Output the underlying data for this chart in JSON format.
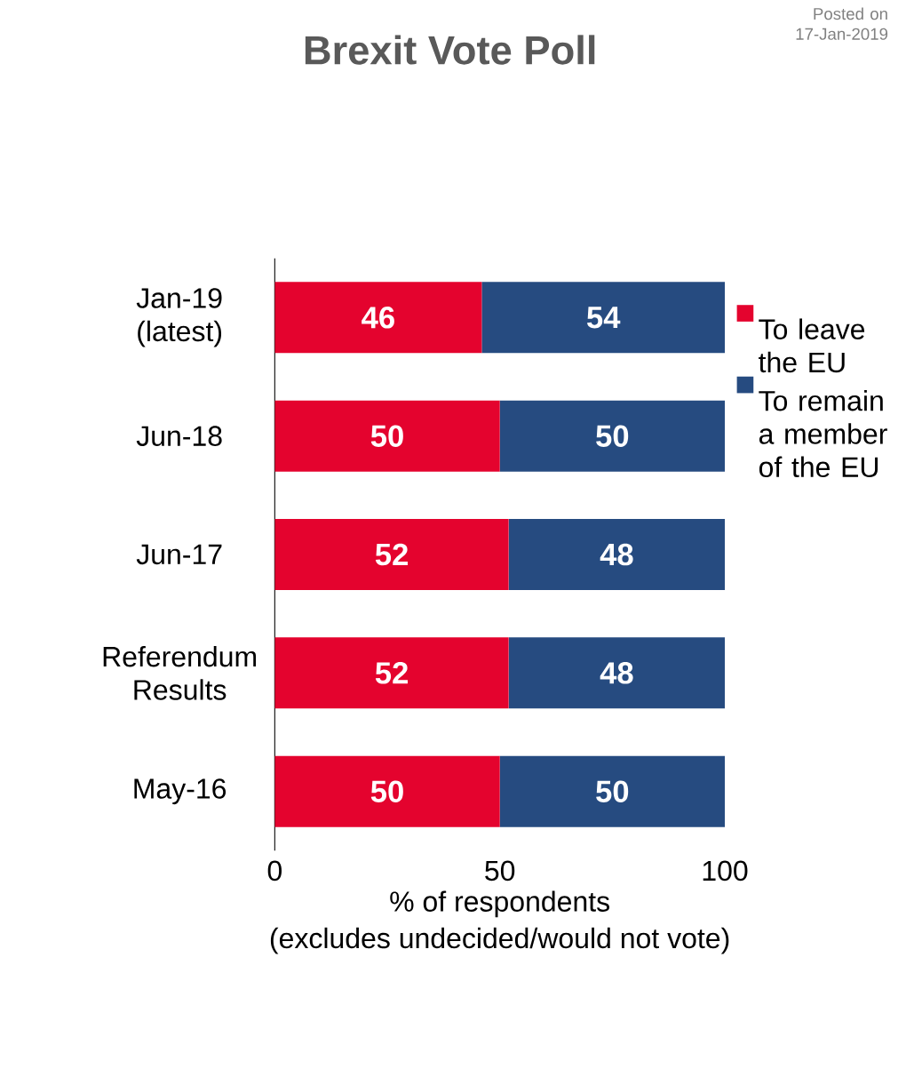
{
  "chart_data": {
    "type": "bar",
    "orientation": "horizontal",
    "stacked": true,
    "title": "Brexit Vote Poll",
    "xlabel": "% of respondents",
    "annotations": [
      "(excludes undecided/would not vote)",
      "Posted on 17-Jan-2019"
    ],
    "categories": [
      "Jan-19 (latest)",
      "Jun-18",
      "Jun-17",
      "Referendum Results",
      "May-16"
    ],
    "series": [
      {
        "name": "To leave the EU",
        "color": "#e4032e",
        "values": [
          46,
          50,
          52,
          52,
          50
        ]
      },
      {
        "name": "To remain a member of the EU",
        "color": "#264b80",
        "values": [
          54,
          50,
          48,
          48,
          50
        ]
      }
    ],
    "xlim": [
      0,
      100
    ],
    "xticks": [
      0,
      50,
      100
    ],
    "data_labels": true,
    "legend": "right"
  }
}
